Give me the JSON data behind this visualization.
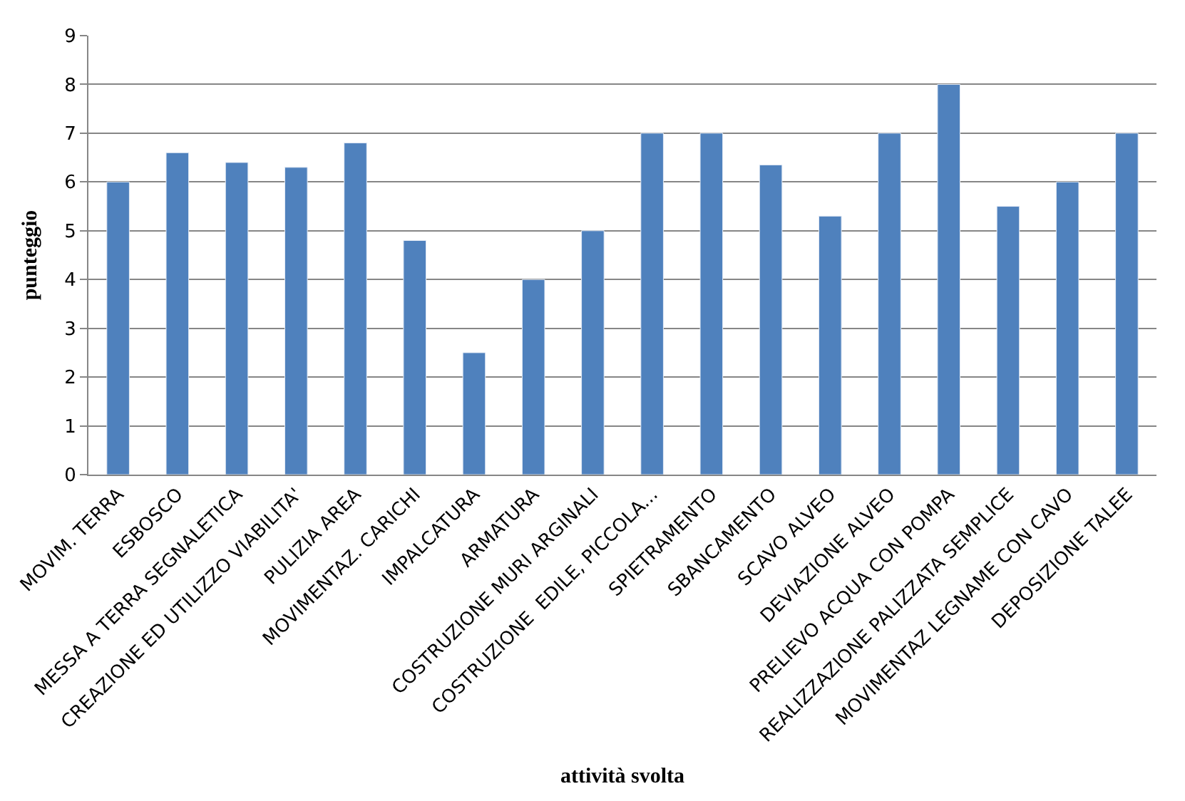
{
  "chart_data": {
    "type": "bar",
    "xlabel": "attività svolta",
    "ylabel": "punteggio",
    "categories": [
      "MOVIM. TERRA",
      "ESBOSCO",
      "MESSA A TERRA SEGNALETICA",
      "CREAZIONE ED UTILIZZO VIABILITA'",
      "PULIZIA AREA",
      "MOVIMENTAZ. CARICHI",
      "IMPALCATURA",
      "ARMATURA",
      "COSTRUZIONE MURI ARGINALI",
      "COSTRUZIONE  EDILE, PICCOLA...",
      "SPIETRAMENTO",
      "SBANCAMENTO",
      "SCAVO ALVEO",
      "DEVIAZIONE ALVEO",
      "PRELIEVO ACQUA CON POMPA",
      "REALIZZAZIONE PALIZZATA SEMPLICE",
      "MOVIMENTAZ LEGNAME CON CAVO",
      "DEPOSIZIONE TALEE"
    ],
    "values": [
      6,
      6.6,
      6.4,
      6.3,
      6.8,
      4.8,
      2.5,
      4,
      5,
      7,
      7,
      6.35,
      5.3,
      7,
      8,
      5.5,
      6,
      7
    ],
    "color": "#4f81bd",
    "ylim": [
      0,
      9
    ],
    "yticks": [
      0,
      1,
      2,
      3,
      4,
      5,
      6,
      7,
      8,
      9
    ],
    "grid": "y"
  }
}
